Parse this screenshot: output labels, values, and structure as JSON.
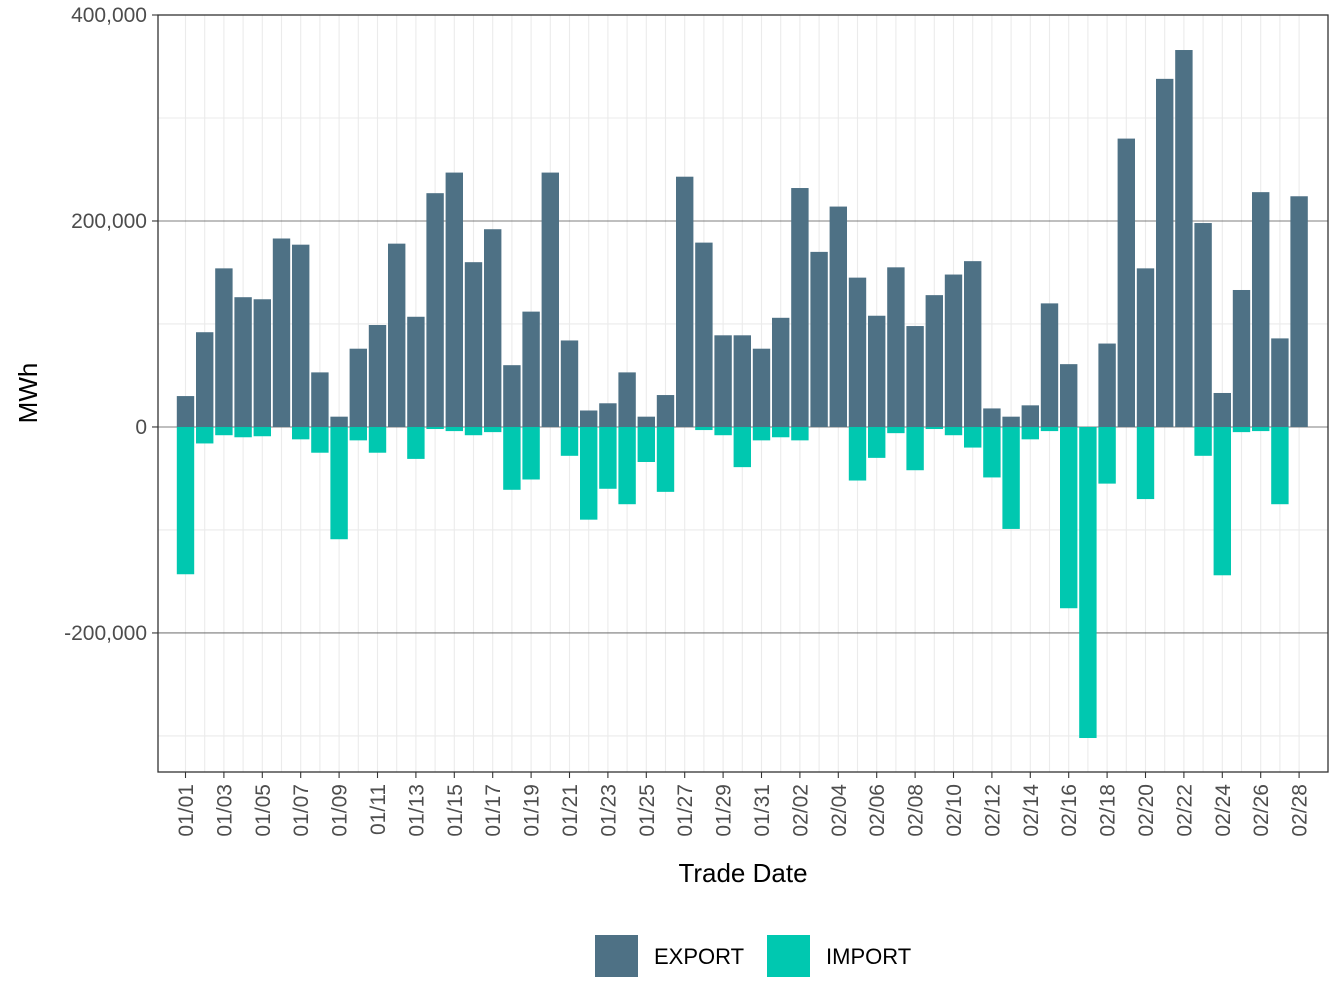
{
  "chart_data": {
    "type": "bar",
    "xlabel": "Trade Date",
    "ylabel": "MWh",
    "ylim": [
      -335000,
      400000
    ],
    "y_ticks": [
      -200000,
      0,
      200000,
      400000
    ],
    "y_tick_labels": [
      "-200,000",
      "0",
      "200,000",
      "400,000"
    ],
    "grid": true,
    "legend_position": "bottom",
    "categories": [
      "01/01",
      "01/02",
      "01/03",
      "01/04",
      "01/05",
      "01/06",
      "01/07",
      "01/08",
      "01/09",
      "01/10",
      "01/11",
      "01/12",
      "01/13",
      "01/14",
      "01/15",
      "01/16",
      "01/17",
      "01/18",
      "01/19",
      "01/20",
      "01/21",
      "01/22",
      "01/23",
      "01/24",
      "01/25",
      "01/26",
      "01/27",
      "01/28",
      "01/29",
      "01/30",
      "01/31",
      "02/01",
      "02/02",
      "02/03",
      "02/04",
      "02/05",
      "02/06",
      "02/07",
      "02/08",
      "02/09",
      "02/10",
      "02/11",
      "02/12",
      "02/13",
      "02/14",
      "02/15",
      "02/16",
      "02/17",
      "02/18",
      "02/19",
      "02/20",
      "02/21",
      "02/22",
      "02/23",
      "02/24",
      "02/25",
      "02/26",
      "02/27",
      "02/28"
    ],
    "x_tick_labels": [
      "01/01",
      "01/03",
      "01/05",
      "01/07",
      "01/09",
      "01/11",
      "01/13",
      "01/15",
      "01/17",
      "01/19",
      "01/21",
      "01/23",
      "01/25",
      "01/27",
      "01/29",
      "01/31",
      "02/02",
      "02/04",
      "02/06",
      "02/08",
      "02/10",
      "02/12",
      "02/14",
      "02/16",
      "02/18",
      "02/20",
      "02/22",
      "02/24",
      "02/26",
      "02/28"
    ],
    "series": [
      {
        "name": "EXPORT",
        "color": "#4e7185",
        "values": [
          30000,
          92000,
          154000,
          126000,
          124000,
          183000,
          177000,
          53000,
          10000,
          76000,
          99000,
          178000,
          107000,
          227000,
          247000,
          160000,
          192000,
          60000,
          112000,
          247000,
          84000,
          16000,
          23000,
          53000,
          10000,
          31000,
          243000,
          179000,
          89000,
          89000,
          76000,
          106000,
          232000,
          170000,
          214000,
          145000,
          108000,
          155000,
          98000,
          128000,
          148000,
          161000,
          18000,
          10000,
          21000,
          120000,
          61000,
          0,
          81000,
          280000,
          154000,
          338000,
          366000,
          198000,
          33000,
          133000,
          228000,
          86000,
          224000
        ]
      },
      {
        "name": "IMPORT",
        "color": "#00c8b0",
        "values": [
          -143000,
          -16000,
          -8000,
          -10000,
          -9000,
          0,
          -12000,
          -25000,
          -109000,
          -13000,
          -25000,
          0,
          -31000,
          -2000,
          -4000,
          -8000,
          -5000,
          -61000,
          -51000,
          0,
          -28000,
          -90000,
          -60000,
          -75000,
          -34000,
          -63000,
          0,
          -3000,
          -8000,
          -39000,
          -13000,
          -10000,
          -13000,
          0,
          0,
          -52000,
          -30000,
          -6000,
          -42000,
          -2000,
          -8000,
          -20000,
          -49000,
          -99000,
          -12000,
          -4000,
          -176000,
          -302000,
          -55000,
          0,
          -70000,
          0,
          0,
          -28000,
          -144000,
          -5000,
          -4000,
          -75000,
          0
        ]
      }
    ]
  }
}
